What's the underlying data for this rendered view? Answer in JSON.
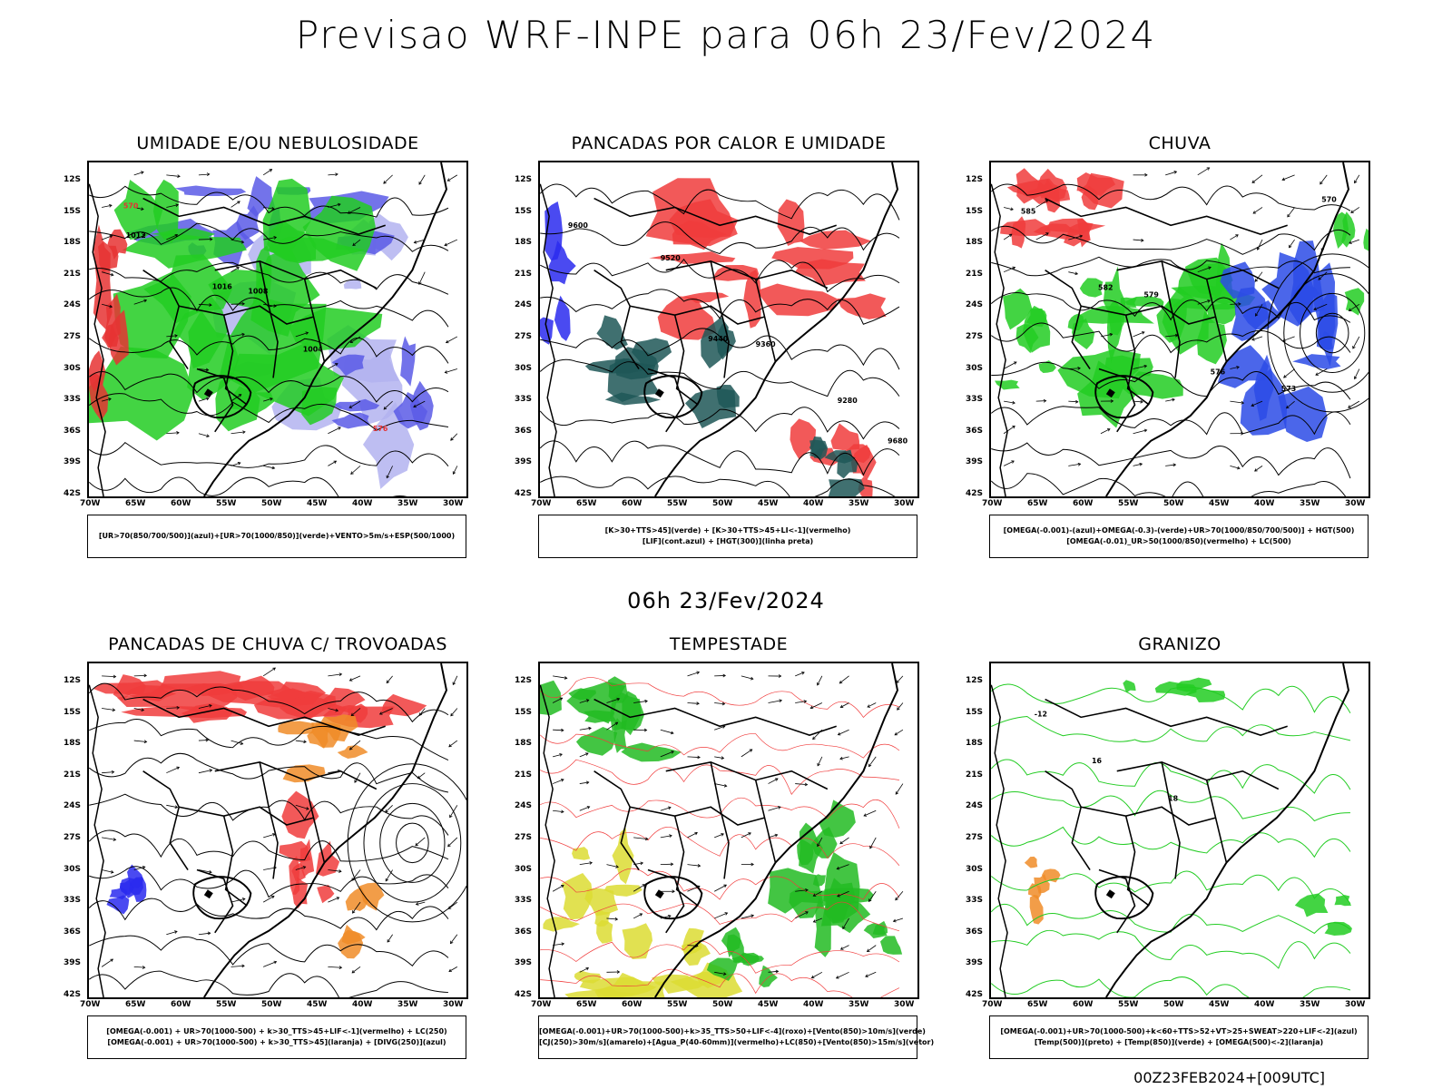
{
  "title": "Previsao WRF-INPE  para 06h 23/Fev/2024",
  "mid_title": "06h 23/Fev/2024",
  "footer": "00Z23FEB2024+[009UTC]",
  "lat_labels": [
    "12S",
    "15S",
    "18S",
    "21S",
    "24S",
    "27S",
    "30S",
    "33S",
    "36S",
    "39S",
    "42S"
  ],
  "lon_labels": [
    "70W",
    "65W",
    "60W",
    "55W",
    "50W",
    "45W",
    "40W",
    "35W",
    "30W"
  ],
  "panels": [
    {
      "title": "UMIDADE E/OU NEBULOSIDADE",
      "legend": [
        "[UR>70(850/700/500)](azul)+[UR>70(1000/850)](verde)+VENTO>5m/s+ESP(500/1000)"
      ],
      "colors": [
        "#5b5be6",
        "#b3b3f0",
        "#22cc22",
        "#e63232"
      ],
      "contour_labels": [
        "1012",
        "1016",
        "1008",
        "1004",
        "576",
        "570"
      ]
    },
    {
      "title": "PANCADAS POR CALOR E UMIDADE",
      "legend": [
        "[K>30+TTS>45](verde) + [K>30+TTS>45+LI<-1](vermelho)",
        "[LIF](cont.azul) + [HGT(300)](linha preta)"
      ],
      "colors": [
        "#1f5757",
        "#f03c3c",
        "#2a2aee"
      ],
      "contour_labels": [
        "9600",
        "9520",
        "9440",
        "9360",
        "9280",
        "9680"
      ]
    },
    {
      "title": "CHUVA",
      "legend": [
        "[OMEGA(-0.001)-(azul)+OMEGA(-0.3)-(verde)+UR>70(1000/850/700/500)] + HGT(500)",
        "[OMEGA(-0.01)_UR>50(1000/850)(vermelho) + LC(500)"
      ],
      "colors": [
        "#2b4be6",
        "#22cc22",
        "#f03c3c"
      ],
      "contour_labels": [
        "585",
        "582",
        "579",
        "576",
        "573",
        "570"
      ]
    },
    {
      "title": "PANCADAS DE CHUVA C/ TROVOADAS",
      "legend": [
        "[OMEGA(-0.001) + UR>70(1000-500) + k>30_TTS>45+LIF<-1](vermelho) + LC(250)",
        "[OMEGA(-0.001) + UR>70(1000-500) + k>30_TTS>45](laranja) + [DIVG(250)](azul)"
      ],
      "colors": [
        "#f03c3c",
        "#f08c28",
        "#2a2aee"
      ],
      "contour_labels": []
    },
    {
      "title": "TEMPESTADE",
      "legend": [
        "[OMEGA(-0.001)+UR>70(1000-500)+k>35_TTS>50+LIF<-4](roxo)+[Vento(850)>10m/s](verde)",
        "[CJ(250)>30m/s](amarelo)+[Agua_P(40-60mm)](vermelho)+LC(850)+[Vento(850)>15m/s](vetor)"
      ],
      "colors": [
        "#22bb22",
        "#dcdc32",
        "#f03c3c"
      ],
      "contour_labels": []
    },
    {
      "title": "GRANIZO",
      "legend": [
        "[OMEGA(-0.001)+UR>70(1000-500)+k<60+TTS>52+VT>25+SWEAT>220+LIF<-2](azul)",
        "[Temp(500)](preto) + [Temp(850)](verde) + [OMEGA(500)<-2](laranja)"
      ],
      "colors": [
        "#22cc22",
        "#f08c28",
        "#000000"
      ],
      "contour_labels": [
        "-12",
        "16",
        "18"
      ]
    }
  ]
}
